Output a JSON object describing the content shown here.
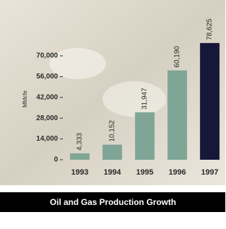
{
  "chart_data": {
    "type": "bar",
    "title": "Oil and Gas Production Growth",
    "y_label": "MMcfe",
    "categories": [
      "1993",
      "1994",
      "1995",
      "1996",
      "1997"
    ],
    "values": [
      4333,
      10152,
      31947,
      60190,
      78625
    ],
    "value_labels": [
      "4,333",
      "10,152",
      "31,947",
      "60,190",
      "78,625"
    ],
    "colors": [
      "#7fa596",
      "#7fa596",
      "#7fa596",
      "#7fa596",
      "#17173a"
    ],
    "ylim": [
      0,
      80000
    ],
    "yticks": [
      0,
      {
        "value": 14000,
        "label": "14,000"
      },
      {
        "value": 28000,
        "label": "28,000"
      },
      {
        "value": 42000,
        "label": "42,000"
      },
      {
        "value": 56000,
        "label": "56,000"
      },
      {
        "value": 70000,
        "label": "70,000"
      }
    ]
  }
}
